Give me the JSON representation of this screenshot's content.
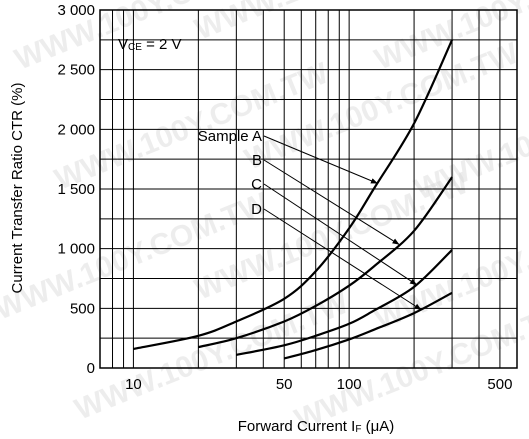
{
  "chart_data": {
    "type": "line",
    "xlabel": {
      "main": "Forward Current  I",
      "sub": "F",
      "unit": " (μA)"
    },
    "ylabel": "Current Transfer Ratio  CTR (%)",
    "xscale": "log",
    "xlim": [
      7,
      600
    ],
    "ylim": [
      0,
      3000
    ],
    "x_ticks": [
      10,
      50,
      100,
      500
    ],
    "x_tick_labels": [
      "10",
      "50",
      "100",
      "500"
    ],
    "y_ticks": [
      0,
      500,
      1000,
      1500,
      2000,
      2500,
      3000
    ],
    "y_tick_labels": [
      "0",
      "500",
      "1 000",
      "1 500",
      "2 000",
      "2 500",
      "3 000"
    ],
    "grid": true,
    "condition": {
      "prefix": "V",
      "sub": "CE",
      "suffix": " = 2 V"
    },
    "series": [
      {
        "name": "Sample A",
        "x": [
          10,
          20,
          30,
          50,
          70,
          100,
          130,
          200,
          300
        ],
        "y": [
          160,
          270,
          390,
          580,
          810,
          1170,
          1500,
          2050,
          2750
        ]
      },
      {
        "name": "B",
        "x": [
          20,
          30,
          50,
          70,
          100,
          130,
          200,
          300
        ],
        "y": [
          175,
          250,
          390,
          520,
          690,
          850,
          1150,
          1600
        ]
      },
      {
        "name": "C",
        "x": [
          30,
          50,
          70,
          100,
          130,
          200,
          300
        ],
        "y": [
          110,
          190,
          270,
          370,
          480,
          680,
          990
        ]
      },
      {
        "name": "D",
        "x": [
          50,
          70,
          100,
          130,
          200,
          300
        ],
        "y": [
          80,
          150,
          240,
          320,
          460,
          630
        ]
      }
    ],
    "watermark": "WWW.100Y.COM.TW"
  }
}
